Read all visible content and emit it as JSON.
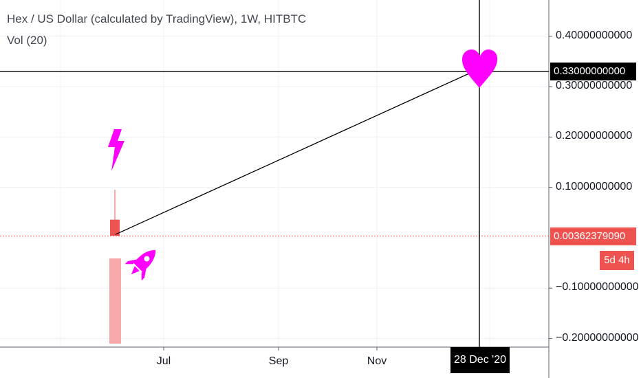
{
  "legend": {
    "title": "Hex / US Dollar (calculated by TradingView), 1W, HITBTC",
    "volume": "Vol (20)"
  },
  "crosshair": {
    "price_label": "0.33000000000",
    "date_label": "28 Dec '20"
  },
  "last_price": {
    "label": "0.00362379090",
    "countdown": "5d 4h",
    "color": "#ef5350"
  },
  "chart_data": {
    "type": "line",
    "title": "Hex / US Dollar (calculated by TradingView), 1W, HITBTC",
    "xlabel": "",
    "ylabel": "",
    "x_ticks": [
      "Jul",
      "Sep",
      "Nov"
    ],
    "y_ticks": [
      "0.40000000000",
      "0.30000000000",
      "0.20000000000",
      "0.10000000000",
      "−0.10000000000",
      "−0.20000000000"
    ],
    "ylim": [
      -0.21,
      0.48
    ],
    "grid": true,
    "candle": {
      "open": 0.036,
      "close": 0.004,
      "high": 0.098,
      "low": 0.004,
      "color": "#ef5350"
    },
    "volume_bar_color": "#f7a8a8",
    "arrow": {
      "from_price": 0.004,
      "to_price": 0.33,
      "color": "#000000"
    },
    "last_price_value": 0.0036237909,
    "crosshair_price": 0.33,
    "accent_color": "#ff00ff",
    "icons": [
      "lightning-icon",
      "rocket-icon",
      "heart-icon"
    ]
  }
}
